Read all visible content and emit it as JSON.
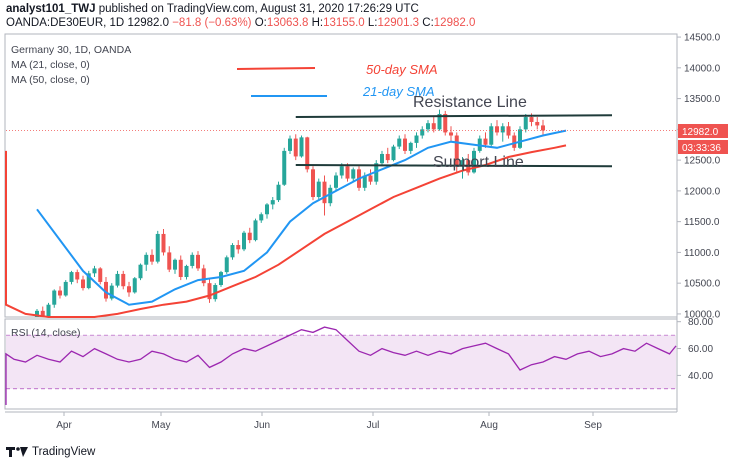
{
  "header": {
    "author": "analyst101_TWJ",
    "published_text": "published on TradingView.com, August 31, 2020 17:26:29 UTC"
  },
  "ohlc": {
    "symbol": "OANDA:DE30EUR, 1D",
    "price": "12982.0",
    "change": "−81.8 (−0.63%)",
    "o_label": "O:",
    "o": "13063.8",
    "h_label": "H:",
    "h": "13155.0",
    "l_label": "L:",
    "l": "12901.3",
    "c_label": "C:",
    "c": "12982.0"
  },
  "legend": {
    "title": "Germany 30, 1D, OANDA",
    "ma21": "MA (21, close, 0)",
    "ma50": "MA (50, close, 0)",
    "rsi": "RSI (14, close)"
  },
  "annotations": {
    "sma50": "50-day SMA",
    "sma21": "21-day SMA",
    "resistance": "Resistance Line",
    "support": "Support Line"
  },
  "price_tags": {
    "last": "12982.0",
    "countdown": "03:33:36"
  },
  "footer": {
    "brand": "TradingView"
  },
  "colors": {
    "up": "#26a69a",
    "down": "#ef5350",
    "ma21": "#2196f3",
    "ma50": "#f44336",
    "rsi": "#9c27b0",
    "rsi_band": "#f3e5f5",
    "trendline": "#1f3b3a"
  },
  "chart_data": [
    {
      "type": "candlestick",
      "title": "Germany 30, 1D, OANDA",
      "x_ticks": [
        "Apr",
        "May",
        "Jun",
        "Jul",
        "Aug",
        "Sep"
      ],
      "y_ticks": [
        10000,
        10500,
        11000,
        11500,
        12000,
        12500,
        13000,
        13500,
        14000,
        14500
      ],
      "y_tick_labels": [
        "10000.0",
        "10500.0",
        "11000.0",
        "11500.0",
        "12000.0",
        "12500.0",
        "13000.0",
        "13500.0",
        "14000.0",
        "14500.0"
      ],
      "ylim": [
        9950,
        14550
      ],
      "candles": [
        {
          "o": 9850,
          "h": 10080,
          "l": 9820,
          "c": 10050
        },
        {
          "o": 10050,
          "h": 10120,
          "l": 9900,
          "c": 9960
        },
        {
          "o": 9960,
          "h": 10180,
          "l": 9930,
          "c": 10150
        },
        {
          "o": 10150,
          "h": 10400,
          "l": 10100,
          "c": 10380
        },
        {
          "o": 10380,
          "h": 10450,
          "l": 10250,
          "c": 10300
        },
        {
          "o": 10300,
          "h": 10550,
          "l": 10280,
          "c": 10520
        },
        {
          "o": 10520,
          "h": 10700,
          "l": 10480,
          "c": 10680
        },
        {
          "o": 10680,
          "h": 10720,
          "l": 10500,
          "c": 10560
        },
        {
          "o": 10560,
          "h": 10620,
          "l": 10380,
          "c": 10420
        },
        {
          "o": 10420,
          "h": 10700,
          "l": 10400,
          "c": 10660
        },
        {
          "o": 10660,
          "h": 10780,
          "l": 10600,
          "c": 10740
        },
        {
          "o": 10740,
          "h": 10760,
          "l": 10480,
          "c": 10520
        },
        {
          "o": 10520,
          "h": 10600,
          "l": 10200,
          "c": 10250
        },
        {
          "o": 10250,
          "h": 10500,
          "l": 10220,
          "c": 10460
        },
        {
          "o": 10460,
          "h": 10700,
          "l": 10430,
          "c": 10650
        },
        {
          "o": 10650,
          "h": 10700,
          "l": 10400,
          "c": 10450
        },
        {
          "o": 10450,
          "h": 10520,
          "l": 10280,
          "c": 10350
        },
        {
          "o": 10350,
          "h": 10600,
          "l": 10330,
          "c": 10580
        },
        {
          "o": 10580,
          "h": 10820,
          "l": 10550,
          "c": 10800
        },
        {
          "o": 10800,
          "h": 11000,
          "l": 10700,
          "c": 10960
        },
        {
          "o": 10960,
          "h": 11050,
          "l": 10800,
          "c": 10850
        },
        {
          "o": 10850,
          "h": 11350,
          "l": 10820,
          "c": 11300
        },
        {
          "o": 11300,
          "h": 11380,
          "l": 10950,
          "c": 11000
        },
        {
          "o": 11000,
          "h": 11100,
          "l": 10680,
          "c": 10720
        },
        {
          "o": 10720,
          "h": 10900,
          "l": 10650,
          "c": 10880
        },
        {
          "o": 10880,
          "h": 10950,
          "l": 10550,
          "c": 10600
        },
        {
          "o": 10600,
          "h": 10800,
          "l": 10560,
          "c": 10780
        },
        {
          "o": 10780,
          "h": 11000,
          "l": 10740,
          "c": 10960
        },
        {
          "o": 10960,
          "h": 11020,
          "l": 10700,
          "c": 10740
        },
        {
          "o": 10740,
          "h": 10800,
          "l": 10450,
          "c": 10500
        },
        {
          "o": 10500,
          "h": 10560,
          "l": 10180,
          "c": 10240
        },
        {
          "o": 10240,
          "h": 10500,
          "l": 10200,
          "c": 10470
        },
        {
          "o": 10470,
          "h": 10700,
          "l": 10440,
          "c": 10680
        },
        {
          "o": 10680,
          "h": 10950,
          "l": 10650,
          "c": 10920
        },
        {
          "o": 10920,
          "h": 11150,
          "l": 10880,
          "c": 11120
        },
        {
          "o": 11120,
          "h": 11200,
          "l": 10980,
          "c": 11050
        },
        {
          "o": 11050,
          "h": 11350,
          "l": 11020,
          "c": 11320
        },
        {
          "o": 11320,
          "h": 11400,
          "l": 11150,
          "c": 11200
        },
        {
          "o": 11200,
          "h": 11550,
          "l": 11180,
          "c": 11520
        },
        {
          "o": 11520,
          "h": 11650,
          "l": 11480,
          "c": 11620
        },
        {
          "o": 11620,
          "h": 11800,
          "l": 11550,
          "c": 11780
        },
        {
          "o": 11780,
          "h": 11900,
          "l": 11700,
          "c": 11850
        },
        {
          "o": 11850,
          "h": 12150,
          "l": 11820,
          "c": 12100
        },
        {
          "o": 12100,
          "h": 12700,
          "l": 12080,
          "c": 12650
        },
        {
          "o": 12650,
          "h": 12900,
          "l": 12600,
          "c": 12850
        },
        {
          "o": 12850,
          "h": 12920,
          "l": 12500,
          "c": 12560
        },
        {
          "o": 12560,
          "h": 12900,
          "l": 12540,
          "c": 12870
        },
        {
          "o": 12870,
          "h": 12880,
          "l": 12300,
          "c": 12350
        },
        {
          "o": 12350,
          "h": 12400,
          "l": 11850,
          "c": 11900
        },
        {
          "o": 11900,
          "h": 12200,
          "l": 11850,
          "c": 12150
        },
        {
          "o": 12150,
          "h": 12250,
          "l": 11600,
          "c": 11800
        },
        {
          "o": 11800,
          "h": 12100,
          "l": 11750,
          "c": 12050
        },
        {
          "o": 12050,
          "h": 12300,
          "l": 12000,
          "c": 12250
        },
        {
          "o": 12250,
          "h": 12450,
          "l": 12200,
          "c": 12400
        },
        {
          "o": 12400,
          "h": 12450,
          "l": 12150,
          "c": 12200
        },
        {
          "o": 12200,
          "h": 12380,
          "l": 12150,
          "c": 12350
        },
        {
          "o": 12350,
          "h": 12400,
          "l": 12000,
          "c": 12050
        },
        {
          "o": 12050,
          "h": 12300,
          "l": 12000,
          "c": 12250
        },
        {
          "o": 12250,
          "h": 12350,
          "l": 12100,
          "c": 12150
        },
        {
          "o": 12150,
          "h": 12500,
          "l": 12100,
          "c": 12450
        },
        {
          "o": 12450,
          "h": 12650,
          "l": 12400,
          "c": 12600
        },
        {
          "o": 12600,
          "h": 12700,
          "l": 12450,
          "c": 12500
        },
        {
          "o": 12500,
          "h": 12750,
          "l": 12480,
          "c": 12720
        },
        {
          "o": 12720,
          "h": 12900,
          "l": 12680,
          "c": 12850
        },
        {
          "o": 12850,
          "h": 12920,
          "l": 12600,
          "c": 12650
        },
        {
          "o": 12650,
          "h": 12800,
          "l": 12600,
          "c": 12780
        },
        {
          "o": 12780,
          "h": 12950,
          "l": 12700,
          "c": 12900
        },
        {
          "o": 12900,
          "h": 13050,
          "l": 12850,
          "c": 13000
        },
        {
          "o": 13000,
          "h": 13150,
          "l": 12950,
          "c": 13100
        },
        {
          "o": 13100,
          "h": 13200,
          "l": 12950,
          "c": 13000
        },
        {
          "o": 13000,
          "h": 13320,
          "l": 12980,
          "c": 13250
        },
        {
          "o": 13250,
          "h": 13300,
          "l": 12900,
          "c": 12950
        },
        {
          "o": 12950,
          "h": 13050,
          "l": 12800,
          "c": 12900
        },
        {
          "o": 12900,
          "h": 12950,
          "l": 12300,
          "c": 12400
        },
        {
          "o": 12400,
          "h": 12550,
          "l": 12200,
          "c": 12500
        },
        {
          "o": 12500,
          "h": 12600,
          "l": 12250,
          "c": 12300
        },
        {
          "o": 12300,
          "h": 12700,
          "l": 12280,
          "c": 12650
        },
        {
          "o": 12650,
          "h": 12900,
          "l": 12620,
          "c": 12850
        },
        {
          "o": 12850,
          "h": 12950,
          "l": 12700,
          "c": 12750
        },
        {
          "o": 12750,
          "h": 13100,
          "l": 12720,
          "c": 13050
        },
        {
          "o": 13050,
          "h": 13150,
          "l": 12900,
          "c": 12950
        },
        {
          "o": 12950,
          "h": 13100,
          "l": 12800,
          "c": 13050
        },
        {
          "o": 13050,
          "h": 13120,
          "l": 12850,
          "c": 12900
        },
        {
          "o": 12900,
          "h": 12950,
          "l": 12650,
          "c": 12700
        },
        {
          "o": 12700,
          "h": 13050,
          "l": 12680,
          "c": 13000
        },
        {
          "o": 13000,
          "h": 13250,
          "l": 12950,
          "c": 13200
        },
        {
          "o": 13200,
          "h": 13260,
          "l": 13050,
          "c": 13120
        },
        {
          "o": 13120,
          "h": 13200,
          "l": 13000,
          "c": 13064
        },
        {
          "o": 13063.8,
          "h": 13155,
          "l": 12901.3,
          "c": 12982
        }
      ],
      "ma21": [
        [
          0,
          11700
        ],
        [
          4,
          11200
        ],
        [
          8,
          10700
        ],
        [
          12,
          10350
        ],
        [
          16,
          10150
        ],
        [
          20,
          10200
        ],
        [
          24,
          10400
        ],
        [
          28,
          10550
        ],
        [
          32,
          10600
        ],
        [
          36,
          10700
        ],
        [
          40,
          11000
        ],
        [
          44,
          11500
        ],
        [
          48,
          11800
        ],
        [
          52,
          12000
        ],
        [
          56,
          12200
        ],
        [
          60,
          12350
        ],
        [
          64,
          12500
        ],
        [
          68,
          12700
        ],
        [
          72,
          12800
        ],
        [
          76,
          12750
        ],
        [
          80,
          12700
        ],
        [
          84,
          12800
        ],
        [
          88,
          12900
        ],
        [
          92,
          12980
        ]
      ],
      "ma50": [
        [
          -42,
          12650
        ],
        [
          -38,
          12400
        ],
        [
          -34,
          12100
        ],
        [
          -30,
          11800
        ],
        [
          -26,
          11500
        ],
        [
          -22,
          11200
        ],
        [
          -18,
          10900
        ],
        [
          -14,
          10600
        ],
        [
          -10,
          10350
        ],
        [
          -6,
          10150
        ],
        [
          -2,
          10000
        ],
        [
          2,
          9920
        ],
        [
          6,
          9900
        ],
        [
          10,
          9920
        ],
        [
          14,
          10000
        ],
        [
          18,
          10080
        ],
        [
          22,
          10150
        ],
        [
          26,
          10200
        ],
        [
          30,
          10300
        ],
        [
          34,
          10450
        ],
        [
          38,
          10600
        ],
        [
          42,
          10800
        ],
        [
          46,
          11050
        ],
        [
          50,
          11300
        ],
        [
          54,
          11500
        ],
        [
          58,
          11700
        ],
        [
          62,
          11900
        ],
        [
          66,
          12050
        ],
        [
          70,
          12200
        ],
        [
          74,
          12330
        ],
        [
          78,
          12420
        ],
        [
          82,
          12550
        ],
        [
          86,
          12630
        ],
        [
          90,
          12700
        ],
        [
          92,
          12740
        ]
      ],
      "resistance_line": [
        [
          45,
          13200
        ],
        [
          100,
          13230
        ]
      ],
      "support_line": [
        [
          45,
          12420
        ],
        [
          100,
          12400
        ]
      ]
    },
    {
      "type": "line",
      "title": "RSI (14, close)",
      "y_ticks": [
        40,
        60,
        80
      ],
      "y_tick_labels": [
        "40.00",
        "60.00",
        "80.00"
      ],
      "ylim": [
        15,
        82
      ],
      "band": [
        30,
        70
      ],
      "values": [
        [
          -42,
          18
        ],
        [
          -40,
          21
        ],
        [
          -38,
          35
        ],
        [
          -36,
          40
        ],
        [
          -34,
          38
        ],
        [
          -32,
          42
        ],
        [
          -30,
          40
        ],
        [
          -28,
          44
        ],
        [
          -26,
          42
        ],
        [
          -24,
          46
        ],
        [
          -22,
          48
        ],
        [
          -20,
          44
        ],
        [
          -18,
          50
        ],
        [
          -16,
          52
        ],
        [
          -14,
          48
        ],
        [
          -12,
          55
        ],
        [
          -10,
          54
        ],
        [
          -8,
          50
        ],
        [
          -6,
          56
        ],
        [
          -4,
          52
        ],
        [
          -2,
          50
        ],
        [
          0,
          55
        ],
        [
          2,
          52
        ],
        [
          4,
          50
        ],
        [
          6,
          58
        ],
        [
          8,
          54
        ],
        [
          10,
          60
        ],
        [
          12,
          56
        ],
        [
          14,
          52
        ],
        [
          16,
          50
        ],
        [
          18,
          52
        ],
        [
          20,
          58
        ],
        [
          22,
          56
        ],
        [
          24,
          52
        ],
        [
          26,
          50
        ],
        [
          28,
          55
        ],
        [
          30,
          46
        ],
        [
          32,
          50
        ],
        [
          34,
          56
        ],
        [
          36,
          60
        ],
        [
          38,
          58
        ],
        [
          40,
          62
        ],
        [
          42,
          66
        ],
        [
          44,
          70
        ],
        [
          46,
          74
        ],
        [
          48,
          72
        ],
        [
          50,
          76
        ],
        [
          52,
          74
        ],
        [
          54,
          66
        ],
        [
          56,
          58
        ],
        [
          58,
          55
        ],
        [
          60,
          60
        ],
        [
          62,
          57
        ],
        [
          64,
          55
        ],
        [
          66,
          58
        ],
        [
          68,
          55
        ],
        [
          70,
          58
        ],
        [
          72,
          56
        ],
        [
          74,
          60
        ],
        [
          76,
          62
        ],
        [
          78,
          64
        ],
        [
          80,
          60
        ],
        [
          82,
          56
        ],
        [
          84,
          44
        ],
        [
          86,
          48
        ],
        [
          88,
          50
        ],
        [
          90,
          54
        ],
        [
          92,
          52
        ],
        [
          94,
          56
        ],
        [
          96,
          58
        ],
        [
          98,
          54
        ],
        [
          100,
          56
        ],
        [
          102,
          60
        ],
        [
          104,
          58
        ],
        [
          106,
          64
        ],
        [
          108,
          60
        ],
        [
          110,
          56
        ],
        [
          112,
          62
        ]
      ]
    }
  ]
}
